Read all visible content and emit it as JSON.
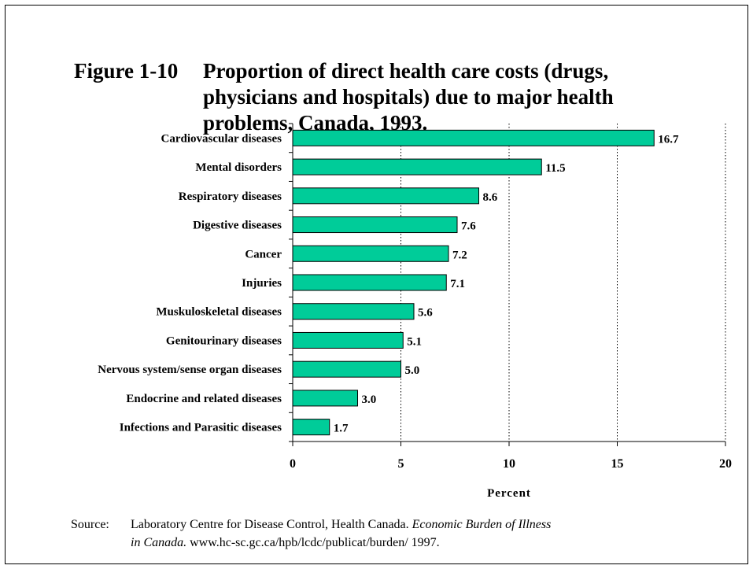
{
  "figure": {
    "label": "Figure 1-10",
    "title": "Proportion of direct health care costs  (drugs, physicians and hospitals) due to major health problems, Canada, 1993."
  },
  "source": {
    "label": "Source:",
    "text1": "Laboratory Centre for Disease Control, Health Canada.",
    "italic1": "Economic Burden of Illness",
    "italic2": "in Canada.",
    "text2": "www.hc-sc.gc.ca/hpb/lcdc/publicat/burden/ 1997."
  },
  "chart_data": {
    "type": "bar",
    "orientation": "horizontal",
    "categories": [
      "Cardiovascular diseases",
      "Mental disorders",
      "Respiratory diseases",
      "Digestive diseases",
      "Cancer",
      "Injuries",
      "Muskuloskeletal diseases",
      "Genitourinary diseases",
      "Nervous system/sense organ diseases",
      "Endocrine and related diseases",
      "Infections and Parasitic diseases"
    ],
    "values": [
      16.7,
      11.5,
      8.6,
      7.6,
      7.2,
      7.1,
      5.6,
      5.1,
      5.0,
      3.0,
      1.7
    ],
    "value_labels": [
      "16.7",
      "11.5",
      "8.6",
      "7.6",
      "7.2",
      "7.1",
      "5.6",
      "5.1",
      "5.0",
      "3.0",
      "1.7"
    ],
    "xlabel": "Percent",
    "xlim": [
      0,
      20
    ],
    "xticks": [
      0,
      5,
      10,
      15,
      20
    ],
    "xtick_labels": [
      "0",
      "5",
      "10",
      "15",
      "20"
    ],
    "grid": "vertical dotted",
    "bar_color": "#00cc99"
  }
}
